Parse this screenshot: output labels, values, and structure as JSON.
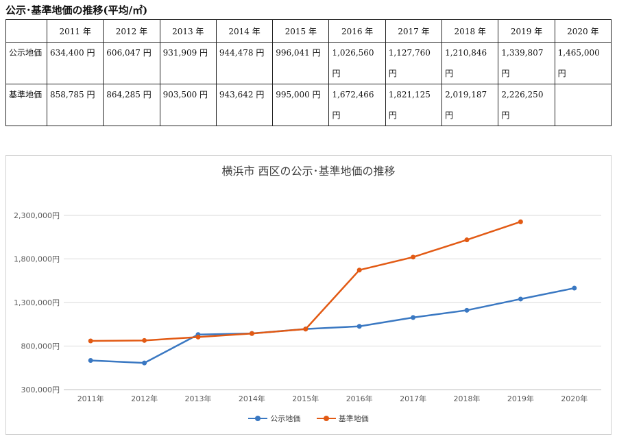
{
  "page_title": "公示･基準地価の推移(平均/㎡)",
  "table": {
    "headers": [
      "",
      "2011 年",
      "2012 年",
      "2013 年",
      "2014 年",
      "2015 年",
      "2016 年",
      "2017 年",
      "2018 年",
      "2019 年",
      "2020 年"
    ],
    "rows": [
      {
        "label": "公示地価",
        "cells": [
          "634,400 円",
          "606,047 円",
          "931,909 円",
          "944,478 円",
          "996,041 円",
          "1,026,560 円",
          "1,127,760 円",
          "1,210,846 円",
          "1,339,807 円",
          "1,465,000 円"
        ]
      },
      {
        "label": "基準地価",
        "cells": [
          "858,785 円",
          "864,285 円",
          "903,500 円",
          "943,642 円",
          "995,000 円",
          "1,672,466 円",
          "1,821,125 円",
          "2,019,187 円",
          "2,226,250 円",
          ""
        ]
      }
    ]
  },
  "chart_data": {
    "type": "line",
    "title": "横浜市 西区の公示･基準地価の推移",
    "categories": [
      "2011年",
      "2012年",
      "2013年",
      "2014年",
      "2015年",
      "2016年",
      "2017年",
      "2018年",
      "2019年",
      "2020年"
    ],
    "ylim": [
      300000,
      2300000
    ],
    "yticks": [
      300000,
      800000,
      1300000,
      1800000,
      2300000
    ],
    "ytick_labels": [
      "300,000円",
      "800,000円",
      "1,300,000円",
      "1,800,000円",
      "2,300,000円"
    ],
    "grid": true,
    "legend_position": "bottom",
    "series": [
      {
        "name": "公示地価",
        "color": "#3a78c2",
        "values": [
          634400,
          606047,
          931909,
          944478,
          996041,
          1026560,
          1127760,
          1210846,
          1339807,
          1465000
        ]
      },
      {
        "name": "基準地価",
        "color": "#e25a14",
        "values": [
          858785,
          864285,
          903500,
          943642,
          995000,
          1672466,
          1821125,
          2019187,
          2226250,
          null
        ]
      }
    ]
  }
}
